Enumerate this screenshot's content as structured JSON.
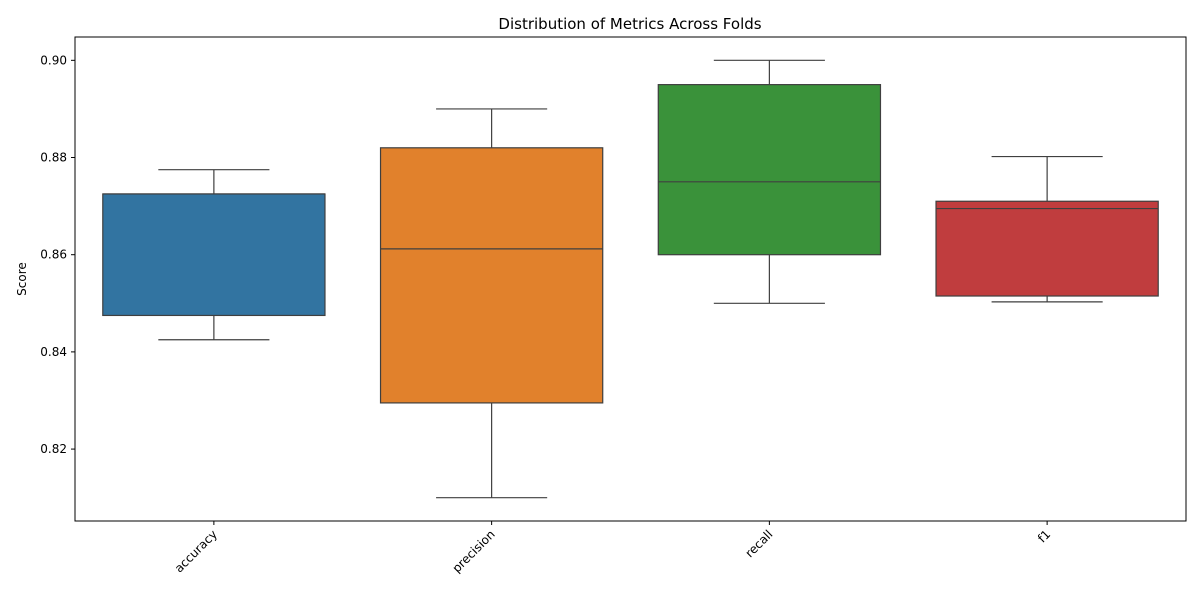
{
  "chart_data": {
    "type": "box",
    "title": "Distribution of Metrics Across Folds",
    "xlabel": "",
    "ylabel": "Score",
    "ylim": [
      0.8052,
      0.9048
    ],
    "yticks": [
      0.82,
      0.84,
      0.86,
      0.88,
      0.9
    ],
    "ytick_labels": [
      "0.82",
      "0.84",
      "0.86",
      "0.88",
      "0.90"
    ],
    "categories": [
      "accuracy",
      "precision",
      "recall",
      "f1"
    ],
    "boxes": [
      {
        "category": "accuracy",
        "whisker_low": 0.8425,
        "q1": 0.8475,
        "median": 0.8725,
        "q3": 0.8725,
        "whisker_high": 0.8775,
        "color": "#3274a1"
      },
      {
        "category": "precision",
        "whisker_low": 0.81,
        "q1": 0.8295,
        "median": 0.8612,
        "q3": 0.882,
        "whisker_high": 0.89,
        "color": "#e1812c"
      },
      {
        "category": "recall",
        "whisker_low": 0.85,
        "q1": 0.86,
        "median": 0.875,
        "q3": 0.895,
        "whisker_high": 0.9,
        "color": "#3a923a"
      },
      {
        "category": "f1",
        "whisker_low": 0.8503,
        "q1": 0.8515,
        "median": 0.8695,
        "q3": 0.871,
        "whisker_high": 0.8802,
        "color": "#c03d3e"
      }
    ],
    "grid": false,
    "legend": "none",
    "xtick_rotation_deg": 45
  }
}
